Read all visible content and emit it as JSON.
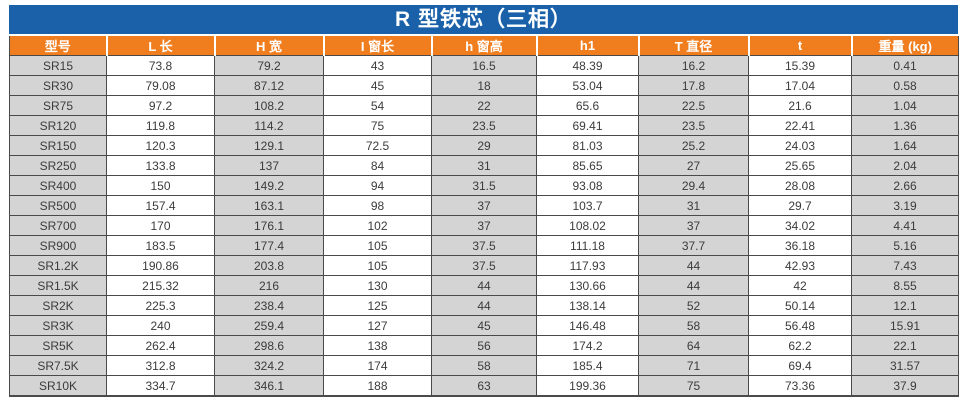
{
  "colors": {
    "title_bg": "#1a61a9",
    "header_bg": "#f07e1f",
    "cell_shade": "#d4d4d4",
    "cell_plain": "#ffffff",
    "grid_line": "#4a4a4a",
    "text": "#3b3b3b"
  },
  "chart_data": {
    "type": "table",
    "title": "R 型铁芯（三相）",
    "columns": [
      "型号",
      "L 长",
      "H 宽",
      "I 窗长",
      "h 窗高",
      "h1",
      "T 直径",
      "t",
      "重量 (kg)"
    ],
    "rows": [
      [
        "SR15",
        "73.8",
        "79.2",
        "43",
        "16.5",
        "48.39",
        "16.2",
        "15.39",
        "0.41"
      ],
      [
        "SR30",
        "79.08",
        "87.12",
        "45",
        "18",
        "53.04",
        "17.8",
        "17.04",
        "0.58"
      ],
      [
        "SR75",
        "97.2",
        "108.2",
        "54",
        "22",
        "65.6",
        "22.5",
        "21.6",
        "1.04"
      ],
      [
        "SR120",
        "119.8",
        "114.2",
        "75",
        "23.5",
        "69.41",
        "23.5",
        "22.41",
        "1.36"
      ],
      [
        "SR150",
        "120.3",
        "129.1",
        "72.5",
        "29",
        "81.03",
        "25.2",
        "24.03",
        "1.64"
      ],
      [
        "SR250",
        "133.8",
        "137",
        "84",
        "31",
        "85.65",
        "27",
        "25.65",
        "2.04"
      ],
      [
        "SR400",
        "150",
        "149.2",
        "94",
        "31.5",
        "93.08",
        "29.4",
        "28.08",
        "2.66"
      ],
      [
        "SR500",
        "157.4",
        "163.1",
        "98",
        "37",
        "103.7",
        "31",
        "29.7",
        "3.19"
      ],
      [
        "SR700",
        "170",
        "176.1",
        "102",
        "37",
        "108.02",
        "37",
        "34.02",
        "4.41"
      ],
      [
        "SR900",
        "183.5",
        "177.4",
        "105",
        "37.5",
        "111.18",
        "37.7",
        "36.18",
        "5.16"
      ],
      [
        "SR1.2K",
        "190.86",
        "203.8",
        "105",
        "37.5",
        "117.93",
        "44",
        "42.93",
        "7.43"
      ],
      [
        "SR1.5K",
        "215.32",
        "216",
        "130",
        "44",
        "130.66",
        "44",
        "42",
        "8.55"
      ],
      [
        "SR2K",
        "225.3",
        "238.4",
        "125",
        "44",
        "138.14",
        "52",
        "50.14",
        "12.1"
      ],
      [
        "SR3K",
        "240",
        "259.4",
        "127",
        "45",
        "146.48",
        "58",
        "56.48",
        "15.91"
      ],
      [
        "SR5K",
        "262.4",
        "298.6",
        "138",
        "56",
        "174.2",
        "64",
        "62.2",
        "22.1"
      ],
      [
        "SR7.5K",
        "312.8",
        "324.2",
        "174",
        "58",
        "185.4",
        "71",
        "69.4",
        "31.57"
      ],
      [
        "SR10K",
        "334.7",
        "346.1",
        "188",
        "63",
        "199.36",
        "75",
        "73.36",
        "37.9"
      ]
    ]
  }
}
